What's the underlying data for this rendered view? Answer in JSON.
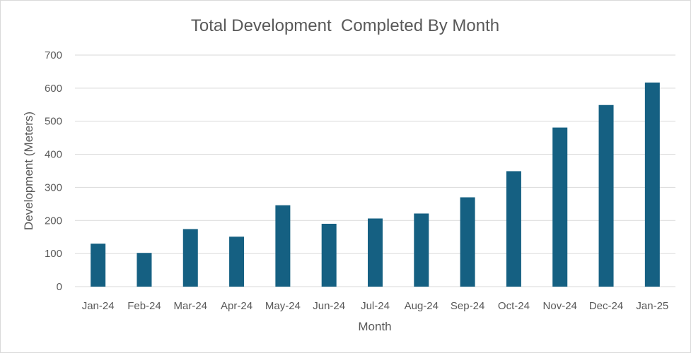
{
  "chart_data": {
    "type": "bar",
    "title": "Total Development  Completed By Month",
    "xlabel": "Month",
    "ylabel": "Development (Meters)",
    "categories": [
      "Jan-24",
      "Feb-24",
      "Mar-24",
      "Apr-24",
      "May-24",
      "Jun-24",
      "Jul-24",
      "Aug-24",
      "Sep-24",
      "Oct-24",
      "Nov-24",
      "Dec-24",
      "Jan-25"
    ],
    "values": [
      130,
      102,
      174,
      151,
      246,
      190,
      206,
      221,
      270,
      349,
      481,
      549,
      617
    ],
    "ylim": [
      0,
      700
    ],
    "yticks": [
      0,
      100,
      200,
      300,
      400,
      500,
      600,
      700
    ],
    "grid": true,
    "legend": "none",
    "colors": {
      "bar": "#156082",
      "grid": "#d9d9d9",
      "text": "#595959"
    }
  }
}
